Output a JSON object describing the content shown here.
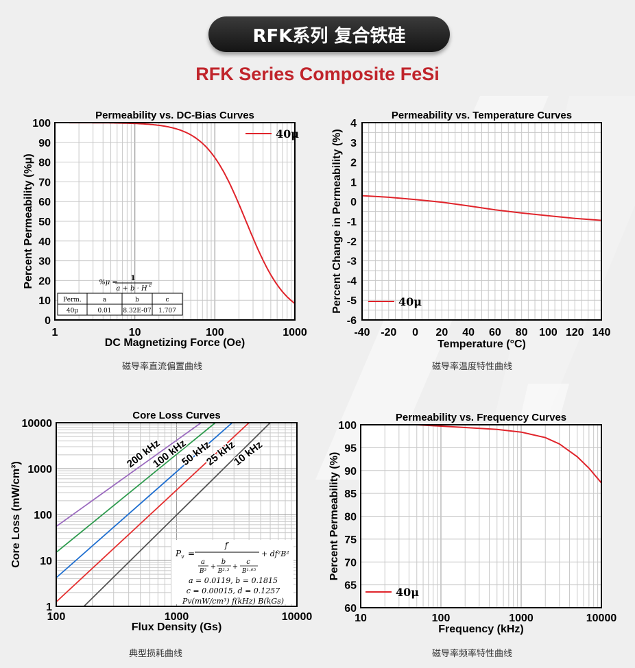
{
  "header": {
    "title_cn": "RFK系列 复合铁硅",
    "title_en": "RFK Series Composite FeSi"
  },
  "captions": {
    "dc_bias": "磁导率直流偏置曲线",
    "temperature": "磁导率温度特性曲线",
    "core_loss": "典型损耗曲线",
    "frequency": "磁导率频率特性曲线"
  },
  "colors": {
    "title_red": "#c0242b",
    "curve_red": "#e0242b",
    "purple": "#9b6bbf",
    "green": "#2e9b4e",
    "blue": "#1f6fd0",
    "red": "#e53030",
    "gray": "#555555"
  },
  "chart_data": [
    {
      "id": "dc_bias",
      "type": "line",
      "title": "Permeability vs. DC-Bias Curves",
      "xlabel": "DC Magnetizing Force (Oe)",
      "ylabel": "Percent Permeability (%μ)",
      "xscale": "log",
      "xlim": [
        1,
        1000
      ],
      "ylim": [
        0,
        100
      ],
      "x_ticks": [
        "1",
        "10",
        "100",
        "1000"
      ],
      "y_ticks": [
        "0",
        "10",
        "20",
        "30",
        "40",
        "50",
        "60",
        "70",
        "80",
        "90",
        "100"
      ],
      "grid": true,
      "legend_position": "top-right",
      "series": [
        {
          "name": "40μ",
          "formula": {
            "a": 0.01,
            "b": 8.32e-07,
            "c": 1.707
          }
        }
      ],
      "formula_text": "%μ = 1 / (a + b·H^c)",
      "formula_lhs": "%μ =",
      "formula_num": "1",
      "formula_den": "a + b · H",
      "formula_den_exp": "c",
      "table": {
        "headers": [
          "Perm.",
          "a",
          "b",
          "c"
        ],
        "rows": [
          [
            "40μ",
            "0.01",
            "8.32E-07",
            "1.707"
          ]
        ]
      }
    },
    {
      "id": "temperature",
      "type": "line",
      "title": "Permeability vs. Temperature Curves",
      "xlabel": "Temperature (°C)",
      "ylabel": "Percent Change in Permeability (%)",
      "xlim": [
        -40,
        140
      ],
      "ylim": [
        -6,
        4
      ],
      "x_ticks": [
        "-40",
        "-20",
        "0",
        "20",
        "40",
        "60",
        "80",
        "100",
        "120",
        "140"
      ],
      "y_ticks": [
        "-6",
        "-5",
        "-4",
        "-3",
        "-2",
        "-1",
        "0",
        "1",
        "2",
        "3",
        "4"
      ],
      "grid": true,
      "legend_position": "bottom-left",
      "series": [
        {
          "name": "40μ",
          "x": [
            -40,
            -20,
            0,
            20,
            40,
            60,
            80,
            100,
            120,
            140
          ],
          "y": [
            0.3,
            0.22,
            0.1,
            -0.03,
            -0.22,
            -0.42,
            -0.58,
            -0.72,
            -0.85,
            -0.95
          ]
        }
      ]
    },
    {
      "id": "core_loss",
      "type": "line",
      "title": "Core Loss Curves",
      "xlabel": "Flux Density (Gs)",
      "ylabel": "Core Loss (mW/cm³)",
      "xscale": "log",
      "yscale": "log",
      "xlim": [
        100,
        10000
      ],
      "ylim": [
        1,
        10000
      ],
      "x_ticks": [
        "100",
        "1000",
        "10000"
      ],
      "y_ticks": [
        "1",
        "10",
        "100",
        "1000",
        "10000"
      ],
      "grid": true,
      "series": [
        {
          "name": "200 kHz",
          "x": [
            100,
            1600
          ],
          "y": [
            55,
            10000
          ]
        },
        {
          "name": "100 kHz",
          "x": [
            100,
            2100
          ],
          "y": [
            15,
            10000
          ]
        },
        {
          "name": "50 kHz",
          "x": [
            100,
            2900
          ],
          "y": [
            4.2,
            10000
          ]
        },
        {
          "name": "25 kHz",
          "x": [
            100,
            4000
          ],
          "y": [
            1.25,
            10000
          ]
        },
        {
          "name": "10 kHz",
          "x": [
            170,
            6000
          ],
          "y": [
            1,
            10000
          ]
        }
      ],
      "formula_lines": [
        "a = 0.0119, b = 0.1815",
        "c = 0.00015, d = 0.1257",
        "Pv(mW/cm³) f(kHz) B(kGs)"
      ]
    },
    {
      "id": "frequency",
      "type": "line",
      "title": "Permeability vs. Frequency Curves",
      "xlabel": "Frequency (kHz)",
      "ylabel": "Percent Permeability (%)",
      "xscale": "log",
      "xlim": [
        10,
        10000
      ],
      "ylim": [
        60,
        100
      ],
      "x_ticks": [
        "10",
        "100",
        "1000",
        "10000"
      ],
      "y_ticks": [
        "60",
        "65",
        "70",
        "75",
        "80",
        "85",
        "90",
        "95",
        "100"
      ],
      "grid": true,
      "legend_position": "bottom-left",
      "series": [
        {
          "name": "40μ",
          "x": [
            10,
            50,
            100,
            200,
            500,
            1000,
            2000,
            3000,
            5000,
            7000,
            10000
          ],
          "y": [
            100,
            100,
            99.7,
            99.4,
            99.0,
            98.4,
            97.2,
            95.8,
            93.0,
            90.5,
            87.3
          ]
        }
      ]
    }
  ]
}
